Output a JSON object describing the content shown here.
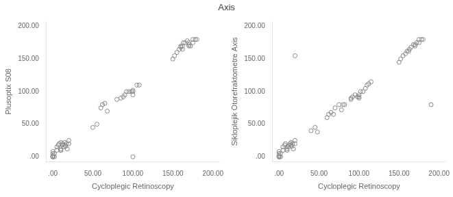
{
  "title": "Axis",
  "chart_data": [
    {
      "type": "scatter",
      "xlabel": "Cycloplegic Retinoscopy",
      "ylabel": "Plusoptix S08",
      "color": "#888888",
      "marker": "circle",
      "grid": false,
      "xlim": [
        -8,
        208
      ],
      "ylim": [
        -8,
        208
      ],
      "xticks": [
        {
          "value": 0,
          "label": ".00"
        },
        {
          "value": 50,
          "label": "50.00"
        },
        {
          "value": 100,
          "label": "100.00"
        },
        {
          "value": 150,
          "label": "150.00"
        },
        {
          "value": 200,
          "label": "200.00"
        }
      ],
      "yticks": [
        {
          "value": 0,
          "label": ".00"
        },
        {
          "value": 50,
          "label": "50.00"
        },
        {
          "value": 100,
          "label": "100.00"
        },
        {
          "value": 150,
          "label": "150.00"
        },
        {
          "value": 200,
          "label": "200.00"
        }
      ],
      "x": [
        0,
        0,
        0,
        0,
        0,
        0,
        0,
        2,
        2,
        5,
        5,
        7,
        8,
        10,
        10,
        10,
        12,
        12,
        14,
        15,
        15,
        16,
        17,
        18,
        20,
        20,
        50,
        55,
        60,
        62,
        65,
        68,
        80,
        85,
        88,
        90,
        92,
        95,
        98,
        100,
        100,
        100,
        105,
        108,
        150,
        152,
        155,
        158,
        160,
        160,
        162,
        162,
        163,
        165,
        168,
        170,
        170,
        172,
        175,
        175,
        178,
        180,
        100,
        10,
        170
      ],
      "values": [
        0,
        0,
        0,
        0,
        2,
        5,
        8,
        0,
        5,
        10,
        15,
        18,
        20,
        22,
        12,
        10,
        18,
        20,
        15,
        22,
        18,
        16,
        20,
        12,
        20,
        25,
        45,
        50,
        75,
        80,
        82,
        70,
        88,
        90,
        92,
        95,
        100,
        100,
        100,
        95,
        100,
        102,
        110,
        110,
        150,
        155,
        160,
        165,
        170,
        168,
        165,
        170,
        175,
        175,
        178,
        175,
        172,
        170,
        175,
        180,
        180,
        180,
        0,
        10,
        170
      ]
    },
    {
      "type": "scatter",
      "xlabel": "Cycloplegic Retinoscopy",
      "ylabel": "Sikloplejik Otorefraktometre Axis",
      "color": "#888888",
      "marker": "circle",
      "grid": false,
      "xlim": [
        -8,
        208
      ],
      "ylim": [
        -8,
        208
      ],
      "xticks": [
        {
          "value": 0,
          "label": ".00"
        },
        {
          "value": 50,
          "label": "50.00"
        },
        {
          "value": 100,
          "label": "100.00"
        },
        {
          "value": 150,
          "label": "150.00"
        },
        {
          "value": 200,
          "label": "200.00"
        }
      ],
      "yticks": [
        {
          "value": 0,
          "label": ".00"
        },
        {
          "value": 50,
          "label": "50.00"
        },
        {
          "value": 100,
          "label": "100.00"
        },
        {
          "value": 150,
          "label": "150.00"
        },
        {
          "value": 200,
          "label": "200.00"
        }
      ],
      "x": [
        0,
        0,
        0,
        0,
        0,
        0,
        0,
        2,
        2,
        5,
        5,
        7,
        8,
        10,
        10,
        10,
        12,
        12,
        14,
        15,
        15,
        16,
        17,
        18,
        20,
        20,
        40,
        45,
        48,
        60,
        62,
        65,
        68,
        70,
        75,
        78,
        80,
        82,
        90,
        90,
        92,
        95,
        98,
        100,
        100,
        100,
        102,
        105,
        108,
        110,
        112,
        115,
        150,
        152,
        155,
        158,
        160,
        162,
        163,
        165,
        168,
        170,
        170,
        172,
        175,
        175,
        178,
        180,
        20,
        190
      ],
      "values": [
        0,
        0,
        0,
        0,
        2,
        5,
        8,
        0,
        5,
        10,
        15,
        18,
        20,
        12,
        15,
        10,
        18,
        15,
        20,
        22,
        18,
        16,
        20,
        12,
        25,
        20,
        40,
        45,
        38,
        60,
        65,
        68,
        65,
        75,
        80,
        72,
        80,
        80,
        88,
        90,
        92,
        95,
        92,
        90,
        92,
        95,
        100,
        100,
        105,
        110,
        112,
        115,
        145,
        150,
        155,
        158,
        162,
        162,
        165,
        168,
        172,
        170,
        172,
        175,
        175,
        180,
        180,
        180,
        155,
        80
      ]
    }
  ]
}
